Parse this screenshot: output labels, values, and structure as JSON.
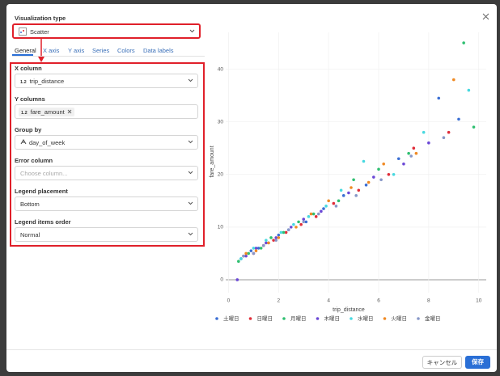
{
  "panel": {
    "type_label": "Visualization type",
    "type_value": "Scatter",
    "tabs": [
      "General",
      "X axis",
      "Y axis",
      "Series",
      "Colors",
      "Data labels"
    ],
    "fields": [
      {
        "label": "X column",
        "icon": "1.2",
        "value": "trip_distance"
      },
      {
        "label": "Y columns",
        "icon": "1.2",
        "value": "fare_amount"
      },
      {
        "label": "Group by",
        "value": "day_of_week"
      },
      {
        "label": "Error column",
        "placeholder": "Choose column..."
      },
      {
        "label": "Legend placement",
        "value": "Bottom"
      },
      {
        "label": "Legend items order",
        "value": "Normal"
      }
    ]
  },
  "buttons": {
    "cancel": "キャンセル",
    "save": "保存"
  },
  "chart_data": {
    "type": "scatter",
    "x_label": "trip_distance",
    "y_label": "fare_amount",
    "xlim": [
      -0.5,
      10.3
    ],
    "ylim": [
      -2,
      47
    ],
    "xticks": [
      0,
      2,
      4,
      6,
      8,
      10
    ],
    "yticks": [
      0,
      10,
      20,
      30,
      40
    ],
    "grid": true,
    "legend": "bottom",
    "series": [
      {
        "name": "土曜日",
        "color": "#3b6fd4",
        "x": [
          0.5,
          0.9,
          1.2,
          1.6,
          2.0,
          2.4,
          3.1,
          3.8,
          4.6,
          5.5,
          6.8,
          8.4,
          9.2
        ],
        "values": [
          4,
          5.5,
          6,
          7,
          8.5,
          9.5,
          11,
          13.5,
          16,
          18,
          23,
          34.5,
          30.5
        ]
      },
      {
        "name": "日曜日",
        "color": "#e02e3a",
        "x": [
          0.6,
          1.0,
          1.4,
          1.8,
          2.3,
          2.9,
          3.5,
          4.2,
          5.2,
          6.4,
          7.4,
          8.8
        ],
        "values": [
          4.5,
          5,
          6.5,
          7.5,
          9,
          10.5,
          12,
          14.5,
          17,
          20,
          25,
          28
        ]
      },
      {
        "name": "月曜日",
        "color": "#2fbf71",
        "x": [
          0.4,
          0.8,
          1.3,
          1.7,
          2.2,
          2.8,
          3.4,
          4.4,
          5.0,
          6.0,
          7.2,
          9.4,
          9.8
        ],
        "values": [
          3.5,
          5,
          6,
          8,
          9,
          11,
          12.5,
          15,
          19,
          21,
          24,
          45,
          29
        ]
      },
      {
        "name": "木曜日",
        "color": "#6b48d6",
        "x": [
          0.35,
          0.7,
          1.1,
          1.5,
          1.9,
          2.5,
          3.0,
          3.7,
          4.8,
          5.8,
          7.0,
          8.0
        ],
        "values": [
          0,
          4.5,
          6,
          7,
          8,
          10,
          11.5,
          13,
          16.5,
          19.5,
          22,
          26
        ]
      },
      {
        "name": "水曜日",
        "color": "#48d9e0",
        "x": [
          0.5,
          1.0,
          1.5,
          2.1,
          2.6,
          3.2,
          3.9,
          4.5,
          5.4,
          6.6,
          7.8,
          9.6
        ],
        "values": [
          4,
          6,
          7.5,
          9,
          10.5,
          12,
          14,
          17,
          22.5,
          20,
          28,
          36
        ]
      },
      {
        "name": "火曜日",
        "color": "#f08a24",
        "x": [
          0.7,
          1.1,
          1.6,
          2.0,
          2.7,
          3.3,
          4.0,
          4.9,
          5.6,
          6.2,
          7.5,
          9.0
        ],
        "values": [
          5,
          5.5,
          7,
          8,
          10,
          12.5,
          15,
          17.5,
          18.5,
          22,
          24,
          38
        ]
      },
      {
        "name": "金曜日",
        "color": "#8898c8",
        "x": [
          0.6,
          1.0,
          1.4,
          1.9,
          2.4,
          3.0,
          3.6,
          4.3,
          5.1,
          6.1,
          7.3,
          8.6
        ],
        "values": [
          4.5,
          5,
          6.5,
          7.5,
          9.5,
          11,
          12.5,
          14,
          16,
          19,
          23.5,
          27
        ]
      }
    ]
  }
}
